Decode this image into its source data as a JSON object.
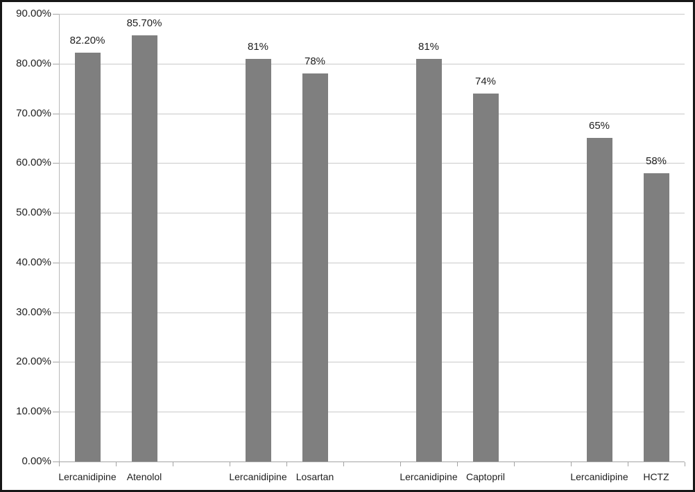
{
  "chart_data": {
    "type": "bar",
    "title": "",
    "xlabel": "",
    "ylabel": "",
    "ylim": [
      0,
      90
    ],
    "ytick_step": 10,
    "ytick_labels": [
      "0.00%",
      "10.00%",
      "20.00%",
      "30.00%",
      "40.00%",
      "50.00%",
      "60.00%",
      "70.00%",
      "80.00%",
      "90.00%"
    ],
    "grid": true,
    "legend": "none",
    "bar_color": "#7f7f7f",
    "categories": [
      "Lercanidipine",
      "Atenolol",
      "Lercanidipine",
      "Losartan",
      "Lercanidipine",
      "Captopril",
      "Lercanidipine",
      "HCTZ"
    ],
    "values": [
      82.2,
      85.7,
      81,
      78,
      81,
      74,
      65,
      58
    ],
    "value_labels": [
      "82.20%",
      "85.70%",
      "81%",
      "78%",
      "81%",
      "74%",
      "65%",
      "58%"
    ],
    "groups": [
      {
        "bars": [
          {
            "category": "Lercanidipine",
            "value": 82.2,
            "label": "82.20%"
          },
          {
            "category": "Atenolol",
            "value": 85.7,
            "label": "85.70%"
          }
        ]
      },
      {
        "bars": [
          {
            "category": "Lercanidipine",
            "value": 81,
            "label": "81%"
          },
          {
            "category": "Losartan",
            "value": 78,
            "label": "78%"
          }
        ]
      },
      {
        "bars": [
          {
            "category": "Lercanidipine",
            "value": 81,
            "label": "81%"
          },
          {
            "category": "Captopril",
            "value": 74,
            "label": "74%"
          }
        ]
      },
      {
        "bars": [
          {
            "category": "Lercanidipine",
            "value": 65,
            "label": "65%"
          },
          {
            "category": "HCTZ",
            "value": 58,
            "label": "58%"
          }
        ]
      }
    ]
  },
  "colors": {
    "bar": "#7f7f7f",
    "gridline": "#c9c9c9",
    "axis": "#a3a3a3",
    "text": "#1e1e1e",
    "frame": "#171717",
    "background": "#ffffff"
  }
}
